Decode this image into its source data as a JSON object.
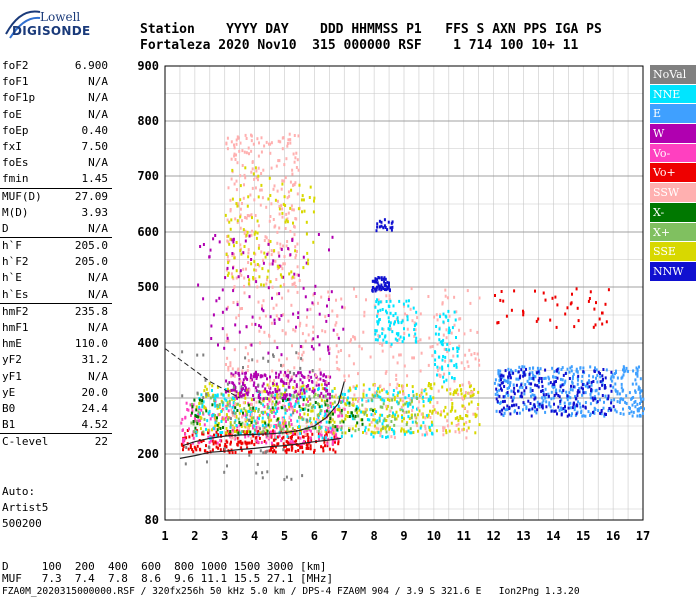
{
  "logo": {
    "line1": "Lowell",
    "line2": "DIGISONDE"
  },
  "header": {
    "line1": "Station    YYYY DAY    DDD HHMMSS P1   FFS S AXN PPS IGA PS",
    "line2": "Fortaleza 2020 Nov10  315 000000 RSF    1 714 100 10+ 11"
  },
  "params": [
    {
      "name": "foF2",
      "value": "6.900"
    },
    {
      "name": "foF1",
      "value": "N/A"
    },
    {
      "name": "foF1p",
      "value": "N/A"
    },
    {
      "name": "foE",
      "value": "N/A"
    },
    {
      "name": "foEp",
      "value": "0.40"
    },
    {
      "name": "fxI",
      "value": "7.50"
    },
    {
      "name": "foEs",
      "value": "N/A"
    },
    {
      "name": "fmin",
      "value": "1.45",
      "sep_after": true
    },
    {
      "name": "MUF(D)",
      "value": "27.09"
    },
    {
      "name": "M(D)",
      "value": "3.93"
    },
    {
      "name": "D",
      "value": "N/A",
      "sep_after": true
    },
    {
      "name": "h`F",
      "value": "205.0"
    },
    {
      "name": "h`F2",
      "value": "205.0"
    },
    {
      "name": "h`E",
      "value": "N/A"
    },
    {
      "name": "h`Es",
      "value": "N/A",
      "sep_after": true
    },
    {
      "name": "hmF2",
      "value": "235.8"
    },
    {
      "name": "hmF1",
      "value": "N/A"
    },
    {
      "name": "hmE",
      "value": "110.0"
    },
    {
      "name": "yF2",
      "value": "31.2"
    },
    {
      "name": "yF1",
      "value": "N/A"
    },
    {
      "name": "yE",
      "value": "20.0"
    },
    {
      "name": "B0",
      "value": "24.4"
    },
    {
      "name": "B1",
      "value": "4.52",
      "sep_after": true
    },
    {
      "name": "C-level",
      "value": "22",
      "sep_after": true
    }
  ],
  "auto": {
    "line1": "Auto:",
    "line2": "Artist5",
    "line3": "500200"
  },
  "legend": [
    {
      "label": "NoVal",
      "color": "#808080"
    },
    {
      "label": "NNE",
      "color": "#00e5ff"
    },
    {
      "label": "E",
      "color": "#3fa0ff"
    },
    {
      "label": "W",
      "color": "#b000b0"
    },
    {
      "label": "Vo-",
      "color": "#ff40c0"
    },
    {
      "label": "Vo+",
      "color": "#ee0000"
    },
    {
      "label": "SSW",
      "color": "#ffb0b0"
    },
    {
      "label": "X-",
      "color": "#007800"
    },
    {
      "label": "X+",
      "color": "#80c060"
    },
    {
      "label": "SSE",
      "color": "#d8d800"
    },
    {
      "label": "NNW",
      "color": "#1010d0"
    }
  ],
  "footer": {
    "line1": "D     100  200  400  600  800 1000 1500 3000 [km]",
    "line2": "MUF   7.3  7.4  7.8  8.6  9.6 11.1 15.5 27.1 [MHz]",
    "line3": "FZA0M_2020315000000.RSF / 320fx256h 50 kHz 5.0 km / DPS-4 FZA0M 904 / 3.9 S 321.6 E   Ion2Png 1.3.20"
  },
  "chart_data": {
    "type": "scatter",
    "title": "",
    "xlabel": "",
    "ylabel": "",
    "xlim": [
      1,
      17
    ],
    "ylim": [
      80,
      900
    ],
    "x_ticks": [
      1,
      2,
      3,
      4,
      5,
      6,
      7,
      8,
      9,
      10,
      11,
      12,
      13,
      14,
      15,
      16,
      17
    ],
    "y_ticks": [
      80,
      200,
      300,
      400,
      500,
      600,
      700,
      800,
      900
    ],
    "grid": true,
    "trace_f2_ordinary": {
      "x": [
        1.5,
        2,
        2.5,
        3,
        3.5,
        4,
        4.5,
        5,
        5.5,
        6,
        6.5,
        6.9
      ],
      "y": [
        192,
        197,
        203,
        205,
        208,
        210,
        213,
        215,
        218,
        222,
        225,
        228
      ]
    },
    "trace_f_virtual": {
      "x": [
        1.6,
        2,
        2.5,
        3,
        3.5,
        4,
        4.5,
        5,
        5.5,
        6,
        6.4,
        6.8,
        7.0
      ],
      "y": [
        215,
        222,
        228,
        232,
        234,
        235,
        236,
        238,
        242,
        250,
        265,
        290,
        330
      ]
    },
    "trace_dashed": {
      "x": [
        1,
        1.5,
        2,
        2.5,
        3,
        3.5
      ],
      "y": [
        390,
        370,
        350,
        330,
        315,
        300
      ]
    },
    "echo_clusters": [
      {
        "color": "#ee0000",
        "x": [
          1.5,
          6.8
        ],
        "y": [
          205,
          245
        ],
        "n": 260
      },
      {
        "color": "#ff40c0",
        "x": [
          1.5,
          7
        ],
        "y": [
          220,
          300
        ],
        "n": 240
      },
      {
        "color": "#d8d800",
        "x": [
          2,
          11.5
        ],
        "y": [
          240,
          330
        ],
        "n": 420
      },
      {
        "color": "#00e5ff",
        "x": [
          2,
          10
        ],
        "y": [
          230,
          320
        ],
        "n": 240
      },
      {
        "color": "#3fa0ff",
        "x": [
          12,
          17
        ],
        "y": [
          270,
          360
        ],
        "n": 380
      },
      {
        "color": "#b000b0",
        "x": [
          3,
          6.5
        ],
        "y": [
          300,
          350
        ],
        "n": 200
      },
      {
        "color": "#1010d0",
        "x": [
          12,
          16
        ],
        "y": [
          270,
          355
        ],
        "n": 200
      },
      {
        "color": "#ffb0b0",
        "x": [
          3,
          11.5
        ],
        "y": [
          230,
          500
        ],
        "n": 420
      },
      {
        "color": "#80c060",
        "x": [
          1.8,
          9.5
        ],
        "y": [
          240,
          310
        ],
        "n": 150
      },
      {
        "color": "#007800",
        "x": [
          1.8,
          8
        ],
        "y": [
          240,
          300
        ],
        "n": 70
      },
      {
        "color": "#808080",
        "x": [
          1.5,
          6
        ],
        "y": [
          150,
          400
        ],
        "n": 60
      },
      {
        "color": "#1010d0",
        "x": [
          7.9,
          8.5
        ],
        "y": [
          495,
          520
        ],
        "n": 50
      },
      {
        "color": "#1010d0",
        "x": [
          8,
          8.6
        ],
        "y": [
          605,
          625
        ],
        "n": 18
      },
      {
        "color": "#00e5ff",
        "x": [
          8,
          9.4
        ],
        "y": [
          400,
          480
        ],
        "n": 80
      },
      {
        "color": "#00e5ff",
        "x": [
          10,
          10.8
        ],
        "y": [
          330,
          460
        ],
        "n": 60
      },
      {
        "color": "#ffb0b0",
        "x": [
          3,
          5.5
        ],
        "y": [
          500,
          780
        ],
        "n": 260
      },
      {
        "color": "#b000b0",
        "x": [
          2,
          7
        ],
        "y": [
          380,
          600
        ],
        "n": 110
      },
      {
        "color": "#d8d800",
        "x": [
          3,
          6
        ],
        "y": [
          500,
          720
        ],
        "n": 110
      },
      {
        "color": "#ee0000",
        "x": [
          12,
          16
        ],
        "y": [
          430,
          500
        ],
        "n": 45
      }
    ]
  }
}
